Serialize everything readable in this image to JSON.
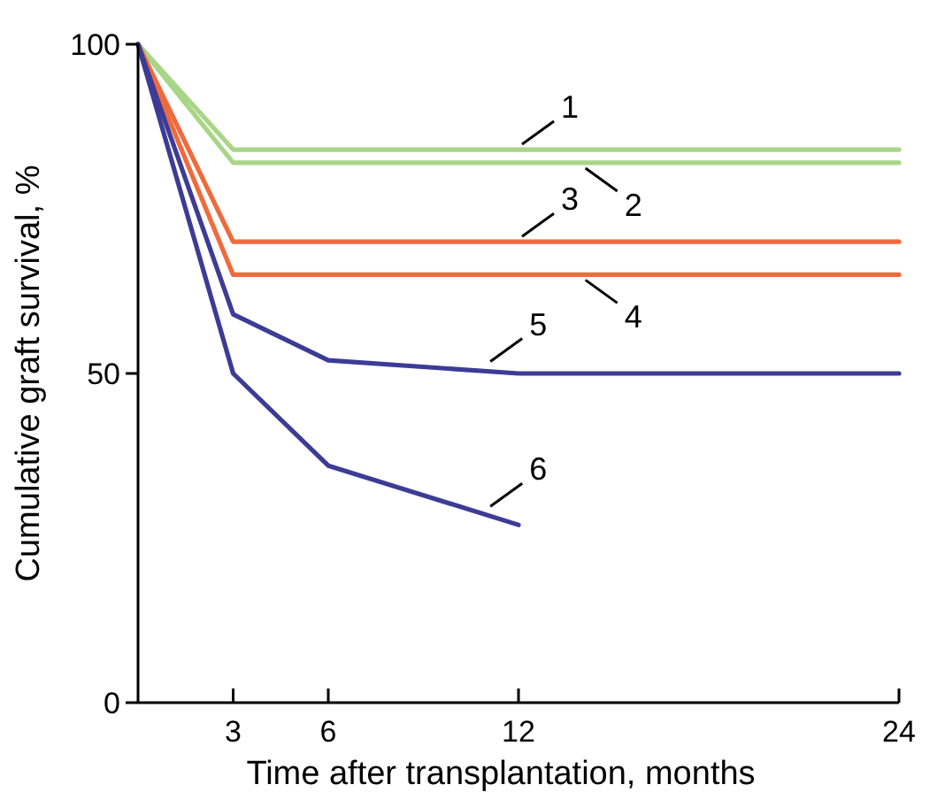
{
  "chart_data": {
    "type": "line",
    "xlabel": "Time after transplantation, months",
    "ylabel": "Cumulative graft survival, %",
    "xlim": [
      0,
      24
    ],
    "xticks": [
      3,
      6,
      12,
      24
    ],
    "ylim": [
      0,
      100
    ],
    "yticks": [
      0,
      50,
      100
    ],
    "grid": false,
    "marker": "none",
    "line_style": "solid",
    "series": [
      {
        "color": "#a8d686",
        "x": [
          0,
          3,
          24
        ],
        "values": [
          100,
          84,
          84
        ]
      },
      {
        "color": "#a8d686",
        "x": [
          0,
          3,
          24
        ],
        "values": [
          100,
          82,
          82
        ]
      },
      {
        "color": "#f06a3c",
        "x": [
          0,
          3,
          24
        ],
        "values": [
          100,
          70,
          70
        ]
      },
      {
        "color": "#f06a3c",
        "x": [
          0,
          3,
          24
        ],
        "values": [
          100,
          65,
          65
        ]
      },
      {
        "color": "#3c3c96",
        "x": [
          0,
          3,
          6,
          12,
          24
        ],
        "values": [
          100,
          59,
          52,
          50,
          50
        ]
      },
      {
        "color": "#3c3c96",
        "x": [
          0,
          3,
          6,
          12
        ],
        "values": [
          100,
          50,
          36,
          27
        ]
      }
    ],
    "annotations": [
      {
        "text": "1",
        "x": 12,
        "y": 84
      },
      {
        "text": "2",
        "x": 14,
        "y": 82
      },
      {
        "text": "3",
        "x": 12,
        "y": 70
      },
      {
        "text": "4",
        "x": 14,
        "y": 65
      },
      {
        "text": "5",
        "x": 11,
        "y": 51
      },
      {
        "text": "6",
        "x": 11,
        "y": 29
      }
    ]
  }
}
